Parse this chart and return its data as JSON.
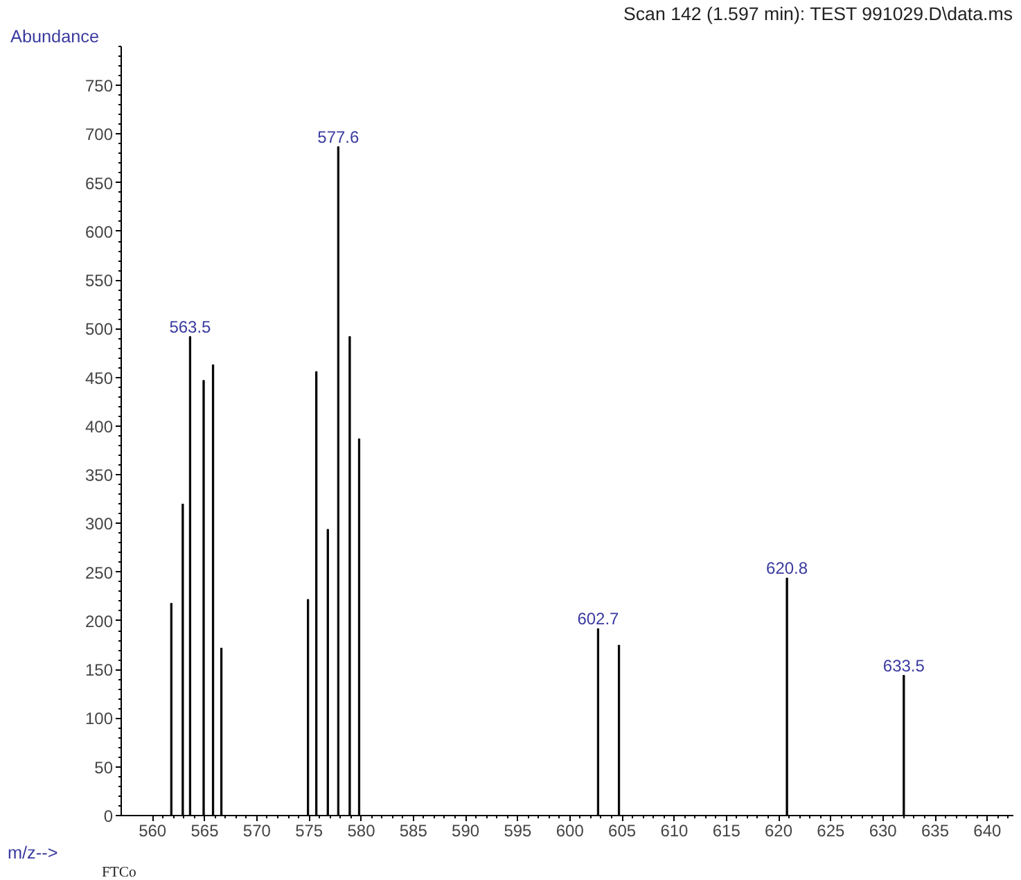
{
  "chart_data": {
    "type": "bar",
    "title": "Scan 142 (1.597 min): TEST 991029.D\\data.ms",
    "xlabel": "m/z-->",
    "ylabel": "Abundance",
    "x": [
      561.8,
      562.9,
      563.6,
      564.9,
      565.8,
      566.6,
      574.9,
      575.7,
      576.8,
      577.8,
      578.9,
      579.8,
      602.7,
      604.7,
      620.8,
      632.0
    ],
    "values": [
      218,
      320,
      492,
      447,
      463,
      172,
      222,
      456,
      294,
      687,
      492,
      387,
      192,
      175,
      244,
      144
    ],
    "color": "#000000",
    "xlim": [
      557,
      642.5
    ],
    "ylim": [
      0,
      790
    ],
    "xticks": [
      560,
      565,
      570,
      575,
      580,
      585,
      590,
      595,
      600,
      605,
      610,
      615,
      620,
      625,
      630,
      635,
      640
    ],
    "yticks": [
      0,
      50,
      100,
      150,
      200,
      250,
      300,
      350,
      400,
      450,
      500,
      550,
      600,
      650,
      700,
      750
    ],
    "grid": false,
    "annotations": [
      {
        "text": "563.5",
        "x": 563.6,
        "y": 492
      },
      {
        "text": "577.6",
        "x": 577.8,
        "y": 687
      },
      {
        "text": "602.7",
        "x": 602.7,
        "y": 192
      },
      {
        "text": "620.8",
        "x": 620.8,
        "y": 244
      },
      {
        "text": "633.5",
        "x": 632.0,
        "y": 144
      },
      "FTCo"
    ]
  }
}
